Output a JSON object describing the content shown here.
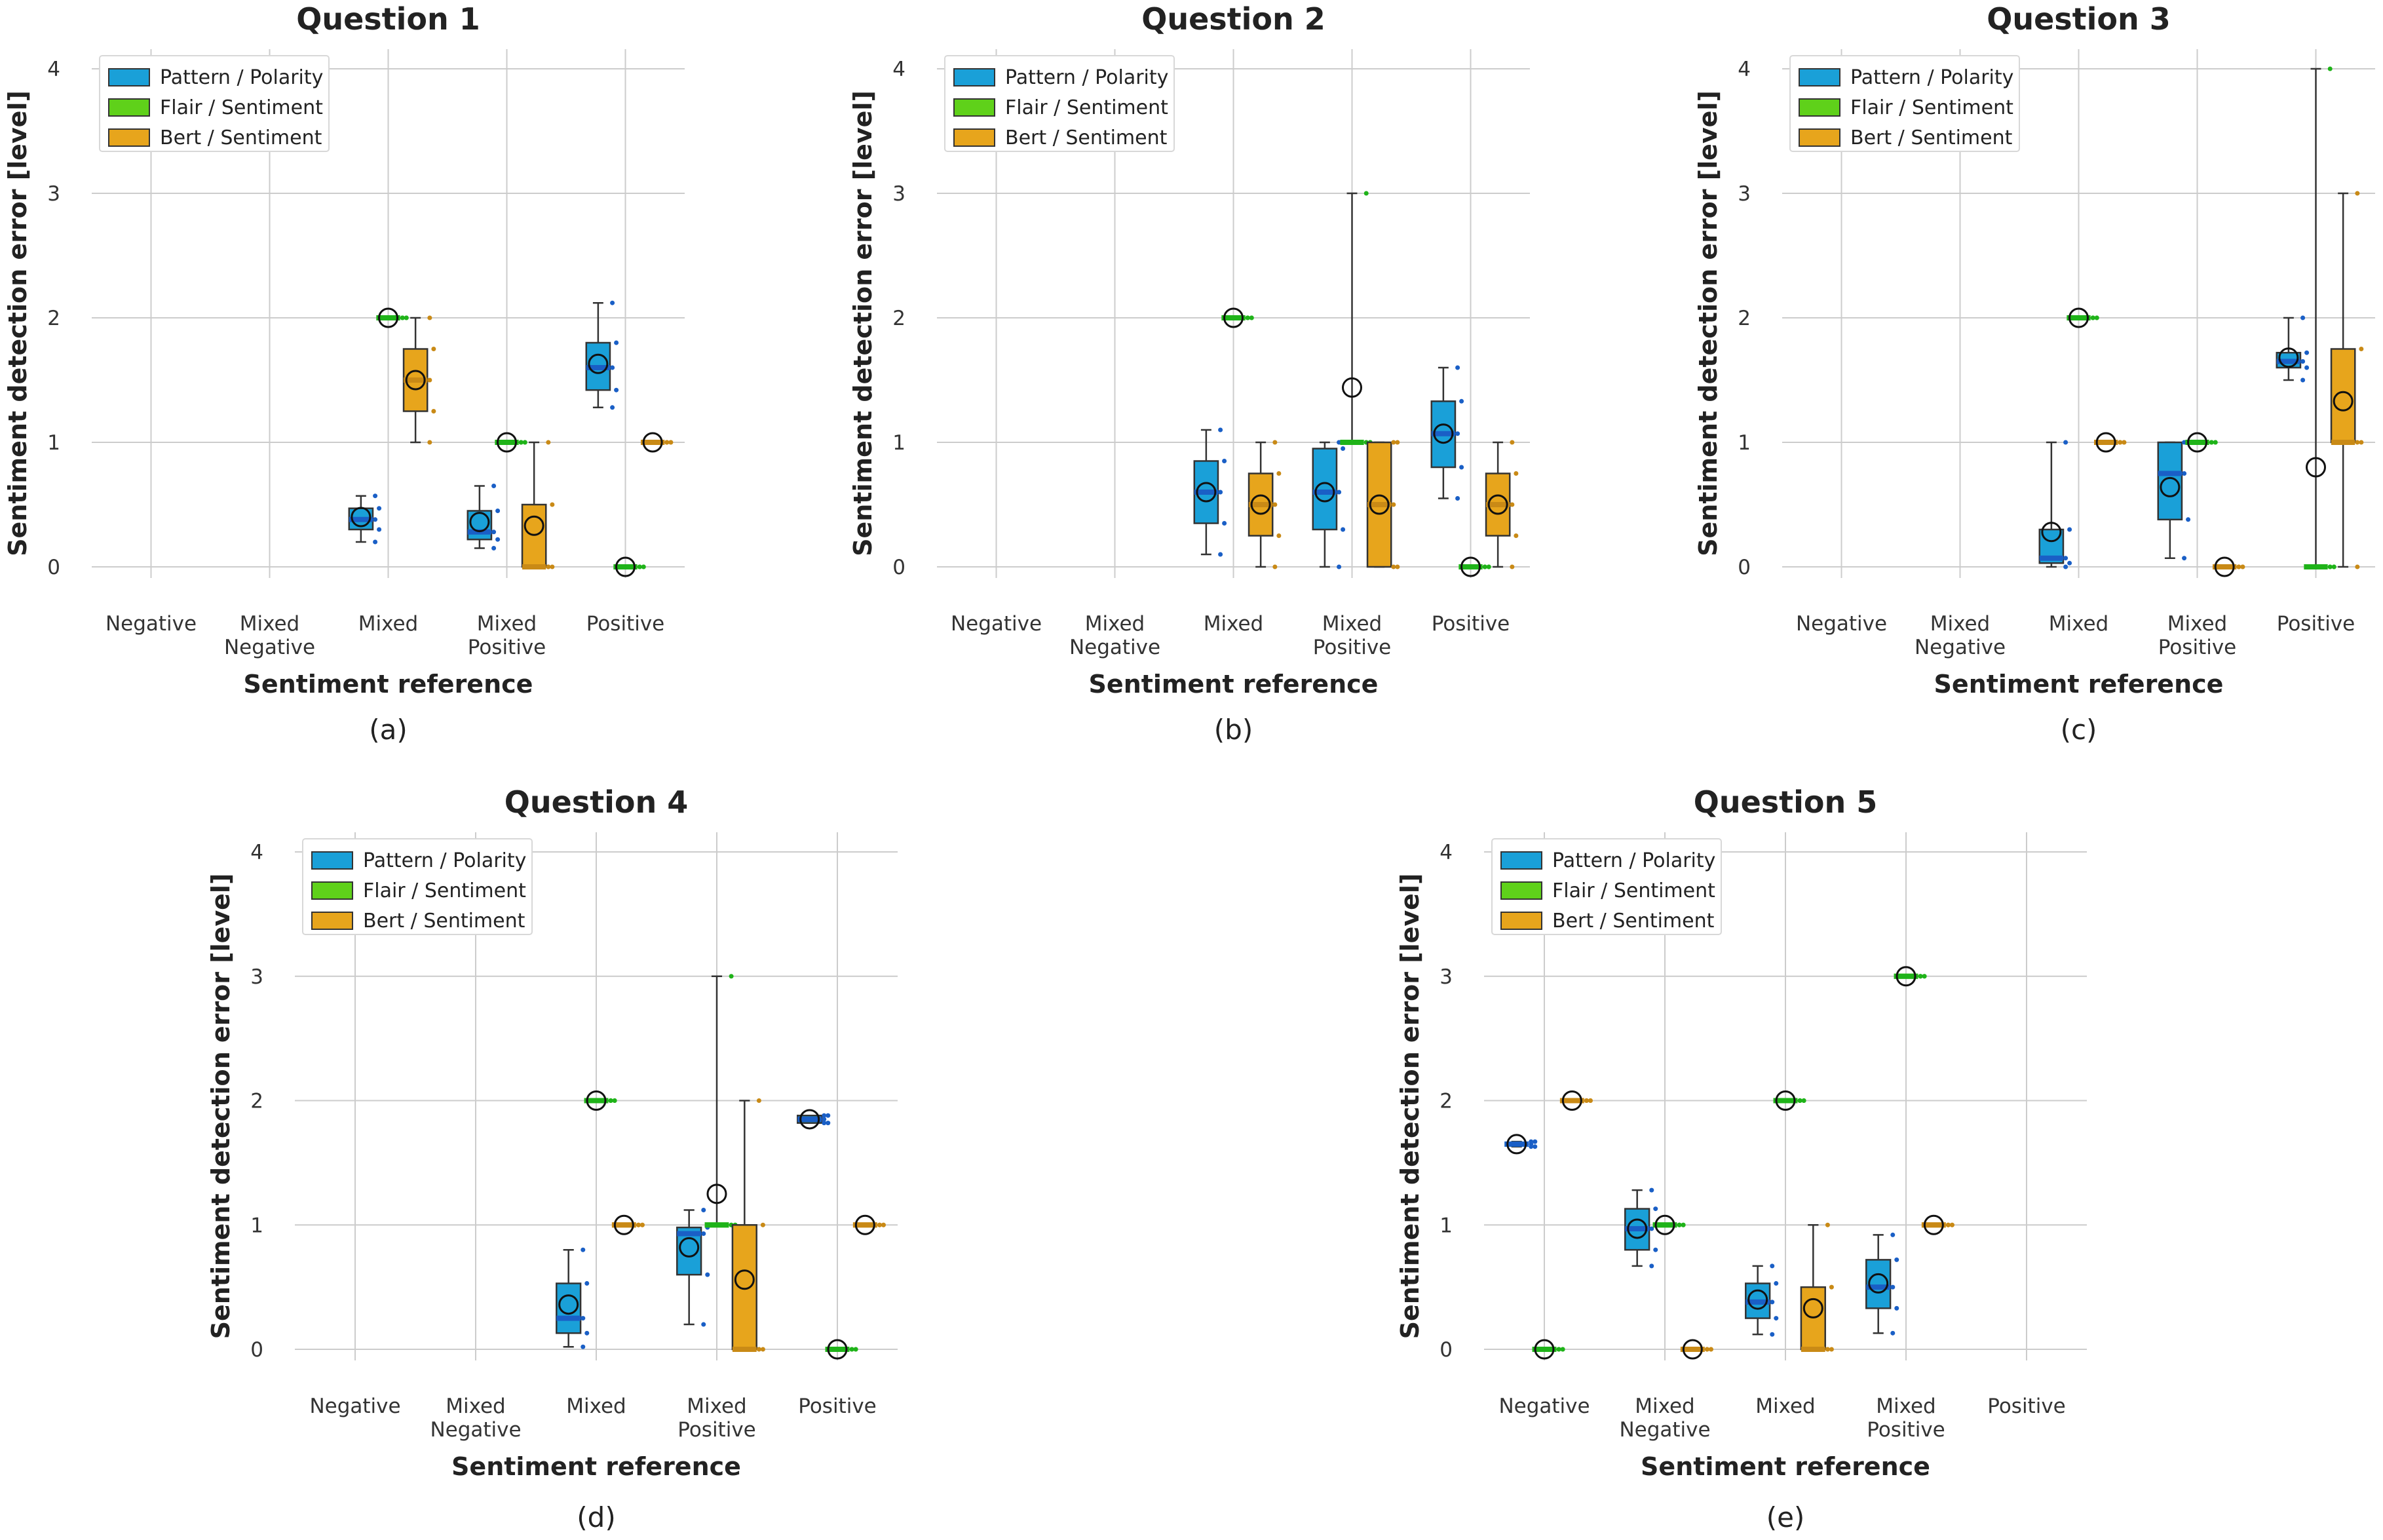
{
  "colors": {
    "pattern": "#1aa0d8",
    "flair": "#5fd11a",
    "bert": "#e7a51c",
    "grid": "#cccccc",
    "median_pattern": "#1a5fc6",
    "median_flair": "#1fb319",
    "median_bert": "#c98a16"
  },
  "chart_data": [
    {
      "type": "box",
      "panel": "(a)",
      "title": "Question 1",
      "xlabel": "Sentiment reference",
      "ylabel": "Sentiment detection error [level]",
      "ylim": [
        0,
        4
      ],
      "yticks": [
        0,
        1,
        2,
        3,
        4
      ],
      "categories": [
        "Negative",
        "Mixed Negative",
        "Mixed",
        "Mixed Positive",
        "Positive"
      ],
      "legend": [
        "Pattern / Polarity",
        "Flair / Sentiment",
        "Bert / Sentiment"
      ],
      "series": [
        {
          "name": "Pattern / Polarity",
          "boxes": [
            null,
            null,
            {
              "q1": 0.3,
              "median": 0.38,
              "q3": 0.47,
              "wlo": 0.2,
              "whi": 0.57,
              "mean": 0.4
            },
            {
              "q1": 0.22,
              "median": 0.28,
              "q3": 0.45,
              "wlo": 0.15,
              "whi": 0.65,
              "mean": 0.36
            },
            {
              "q1": 1.42,
              "median": 1.6,
              "q3": 1.8,
              "wlo": 1.28,
              "whi": 2.12,
              "mean": 1.63
            }
          ]
        },
        {
          "name": "Flair / Sentiment",
          "boxes": [
            null,
            null,
            {
              "q1": 2,
              "median": 2,
              "q3": 2,
              "wlo": 2,
              "whi": 2,
              "mean": 2
            },
            {
              "q1": 1,
              "median": 1,
              "q3": 1,
              "wlo": 1,
              "whi": 1,
              "mean": 1
            },
            {
              "q1": 0,
              "median": 0,
              "q3": 0,
              "wlo": 0,
              "whi": 0,
              "mean": 0
            }
          ]
        },
        {
          "name": "Bert / Sentiment",
          "boxes": [
            null,
            null,
            {
              "q1": 1.25,
              "median": 1.5,
              "q3": 1.75,
              "wlo": 1,
              "whi": 2,
              "mean": 1.5
            },
            {
              "q1": 0,
              "median": 0,
              "q3": 0.5,
              "wlo": 0,
              "whi": 1,
              "mean": 0.33
            },
            {
              "q1": 1,
              "median": 1,
              "q3": 1,
              "wlo": 1,
              "whi": 1,
              "mean": 1
            }
          ]
        }
      ]
    },
    {
      "type": "box",
      "panel": "(b)",
      "title": "Question 2",
      "xlabel": "Sentiment reference",
      "ylabel": "Sentiment detection error [level]",
      "ylim": [
        0,
        4
      ],
      "yticks": [
        0,
        1,
        2,
        3,
        4
      ],
      "categories": [
        "Negative",
        "Mixed Negative",
        "Mixed",
        "Mixed Positive",
        "Positive"
      ],
      "legend": [
        "Pattern / Polarity",
        "Flair / Sentiment",
        "Bert / Sentiment"
      ],
      "series": [
        {
          "name": "Pattern / Polarity",
          "boxes": [
            null,
            null,
            {
              "q1": 0.35,
              "median": 0.6,
              "q3": 0.85,
              "wlo": 0.1,
              "whi": 1.1,
              "mean": 0.6
            },
            {
              "q1": 0.3,
              "median": 0.6,
              "q3": 0.95,
              "wlo": 0,
              "whi": 1,
              "mean": 0.6
            },
            {
              "q1": 0.8,
              "median": 1.07,
              "q3": 1.33,
              "wlo": 0.55,
              "whi": 1.6,
              "mean": 1.07
            }
          ]
        },
        {
          "name": "Flair / Sentiment",
          "boxes": [
            null,
            null,
            {
              "q1": 2,
              "median": 2,
              "q3": 2,
              "wlo": 2,
              "whi": 2,
              "mean": 2
            },
            {
              "q1": 1,
              "median": 1,
              "q3": 1,
              "wlo": 1,
              "whi": 3,
              "mean": 1.44
            },
            {
              "q1": 0,
              "median": 0,
              "q3": 0,
              "wlo": 0,
              "whi": 0,
              "mean": 0
            }
          ]
        },
        {
          "name": "Bert / Sentiment",
          "boxes": [
            null,
            null,
            {
              "q1": 0.25,
              "median": 0.5,
              "q3": 0.75,
              "wlo": 0,
              "whi": 1,
              "mean": 0.5
            },
            {
              "q1": 0,
              "median": 0.5,
              "q3": 1,
              "wlo": 0,
              "whi": 1,
              "mean": 0.5
            },
            {
              "q1": 0.25,
              "median": 0.5,
              "q3": 0.75,
              "wlo": 0,
              "whi": 1,
              "mean": 0.5
            }
          ]
        }
      ]
    },
    {
      "type": "box",
      "panel": "(c)",
      "title": "Question 3",
      "xlabel": "Sentiment reference",
      "ylabel": "Sentiment detection error [level]",
      "ylim": [
        0,
        4
      ],
      "yticks": [
        0,
        1,
        2,
        3,
        4
      ],
      "categories": [
        "Negative",
        "Mixed Negative",
        "Mixed",
        "Mixed Positive",
        "Positive"
      ],
      "legend": [
        "Pattern / Polarity",
        "Flair / Sentiment",
        "Bert / Sentiment"
      ],
      "series": [
        {
          "name": "Pattern / Polarity",
          "boxes": [
            null,
            null,
            {
              "q1": 0.03,
              "median": 0.07,
              "q3": 0.3,
              "wlo": 0,
              "whi": 1,
              "mean": 0.28
            },
            {
              "q1": 0.38,
              "median": 0.75,
              "q3": 1,
              "wlo": 0.07,
              "whi": 1,
              "mean": 0.64
            },
            {
              "q1": 1.6,
              "median": 1.65,
              "q3": 1.72,
              "wlo": 1.5,
              "whi": 2,
              "mean": 1.68
            }
          ]
        },
        {
          "name": "Flair / Sentiment",
          "boxes": [
            null,
            null,
            {
              "q1": 2,
              "median": 2,
              "q3": 2,
              "wlo": 2,
              "whi": 2,
              "mean": 2
            },
            {
              "q1": 1,
              "median": 1,
              "q3": 1,
              "wlo": 1,
              "whi": 1,
              "mean": 1
            },
            {
              "q1": 0,
              "median": 0,
              "q3": 0,
              "wlo": 0,
              "whi": 4,
              "mean": 0.8
            }
          ]
        },
        {
          "name": "Bert / Sentiment",
          "boxes": [
            null,
            null,
            {
              "q1": 1,
              "median": 1,
              "q3": 1,
              "wlo": 1,
              "whi": 1,
              "mean": 1
            },
            {
              "q1": 0,
              "median": 0,
              "q3": 0,
              "wlo": 0,
              "whi": 0,
              "mean": 0
            },
            {
              "q1": 1,
              "median": 1,
              "q3": 1.75,
              "wlo": 0,
              "whi": 3,
              "mean": 1.33
            }
          ]
        }
      ]
    },
    {
      "type": "box",
      "panel": "(d)",
      "title": "Question 4",
      "xlabel": "Sentiment reference",
      "ylabel": "Sentiment detection error [level]",
      "ylim": [
        0,
        4
      ],
      "yticks": [
        0,
        1,
        2,
        3,
        4
      ],
      "categories": [
        "Negative",
        "Mixed Negative",
        "Mixed",
        "Mixed Positive",
        "Positive"
      ],
      "legend": [
        "Pattern / Polarity",
        "Flair / Sentiment",
        "Bert / Sentiment"
      ],
      "series": [
        {
          "name": "Pattern / Polarity",
          "boxes": [
            null,
            null,
            {
              "q1": 0.13,
              "median": 0.25,
              "q3": 0.53,
              "wlo": 0.02,
              "whi": 0.8,
              "mean": 0.36
            },
            {
              "q1": 0.6,
              "median": 0.93,
              "q3": 0.98,
              "wlo": 0.2,
              "whi": 1.12,
              "mean": 0.82
            },
            {
              "q1": 1.82,
              "median": 1.85,
              "q3": 1.88,
              "wlo": 1.82,
              "whi": 1.88,
              "mean": 1.85
            }
          ]
        },
        {
          "name": "Flair / Sentiment",
          "boxes": [
            null,
            null,
            {
              "q1": 2,
              "median": 2,
              "q3": 2,
              "wlo": 2,
              "whi": 2,
              "mean": 2
            },
            {
              "q1": 1,
              "median": 1,
              "q3": 1,
              "wlo": 1,
              "whi": 3,
              "mean": 1.25
            },
            {
              "q1": 0,
              "median": 0,
              "q3": 0,
              "wlo": 0,
              "whi": 0,
              "mean": 0
            }
          ]
        },
        {
          "name": "Bert / Sentiment",
          "boxes": [
            null,
            null,
            {
              "q1": 1,
              "median": 1,
              "q3": 1,
              "wlo": 1,
              "whi": 1,
              "mean": 1
            },
            {
              "q1": 0,
              "median": 0,
              "q3": 1,
              "wlo": 0,
              "whi": 2,
              "mean": 0.56
            },
            {
              "q1": 1,
              "median": 1,
              "q3": 1,
              "wlo": 1,
              "whi": 1,
              "mean": 1
            }
          ]
        }
      ]
    },
    {
      "type": "box",
      "panel": "(e)",
      "title": "Question 5",
      "xlabel": "Sentiment reference",
      "ylabel": "Sentiment detection error [level]",
      "ylim": [
        0,
        4
      ],
      "yticks": [
        0,
        1,
        2,
        3,
        4
      ],
      "categories": [
        "Negative",
        "Mixed Negative",
        "Mixed",
        "Mixed Positive",
        "Positive"
      ],
      "legend": [
        "Pattern / Polarity",
        "Flair / Sentiment",
        "Bert / Sentiment"
      ],
      "series": [
        {
          "name": "Pattern / Polarity",
          "boxes": [
            {
              "q1": 1.63,
              "median": 1.65,
              "q3": 1.67,
              "wlo": 1.63,
              "whi": 1.67,
              "mean": 1.65
            },
            {
              "q1": 0.8,
              "median": 0.97,
              "q3": 1.13,
              "wlo": 0.67,
              "whi": 1.28,
              "mean": 0.97
            },
            {
              "q1": 0.25,
              "median": 0.38,
              "q3": 0.53,
              "wlo": 0.12,
              "whi": 0.67,
              "mean": 0.4
            },
            {
              "q1": 0.33,
              "median": 0.5,
              "q3": 0.72,
              "wlo": 0.13,
              "whi": 0.92,
              "mean": 0.53
            },
            null
          ]
        },
        {
          "name": "Flair / Sentiment",
          "boxes": [
            {
              "q1": 0,
              "median": 0,
              "q3": 0,
              "wlo": 0,
              "whi": 0,
              "mean": 0
            },
            {
              "q1": 1,
              "median": 1,
              "q3": 1,
              "wlo": 1,
              "whi": 1,
              "mean": 1
            },
            {
              "q1": 2,
              "median": 2,
              "q3": 2,
              "wlo": 2,
              "whi": 2,
              "mean": 2
            },
            {
              "q1": 3,
              "median": 3,
              "q3": 3,
              "wlo": 3,
              "whi": 3,
              "mean": 3
            },
            null
          ]
        },
        {
          "name": "Bert / Sentiment",
          "boxes": [
            {
              "q1": 2,
              "median": 2,
              "q3": 2,
              "wlo": 2,
              "whi": 2,
              "mean": 2
            },
            {
              "q1": 0,
              "median": 0,
              "q3": 0,
              "wlo": 0,
              "whi": 0,
              "mean": 0
            },
            {
              "q1": 0,
              "median": 0,
              "q3": 0.5,
              "wlo": 0,
              "whi": 1,
              "mean": 0.33
            },
            {
              "q1": 1,
              "median": 1,
              "q3": 1,
              "wlo": 1,
              "whi": 1,
              "mean": 1
            },
            null
          ]
        }
      ]
    }
  ]
}
